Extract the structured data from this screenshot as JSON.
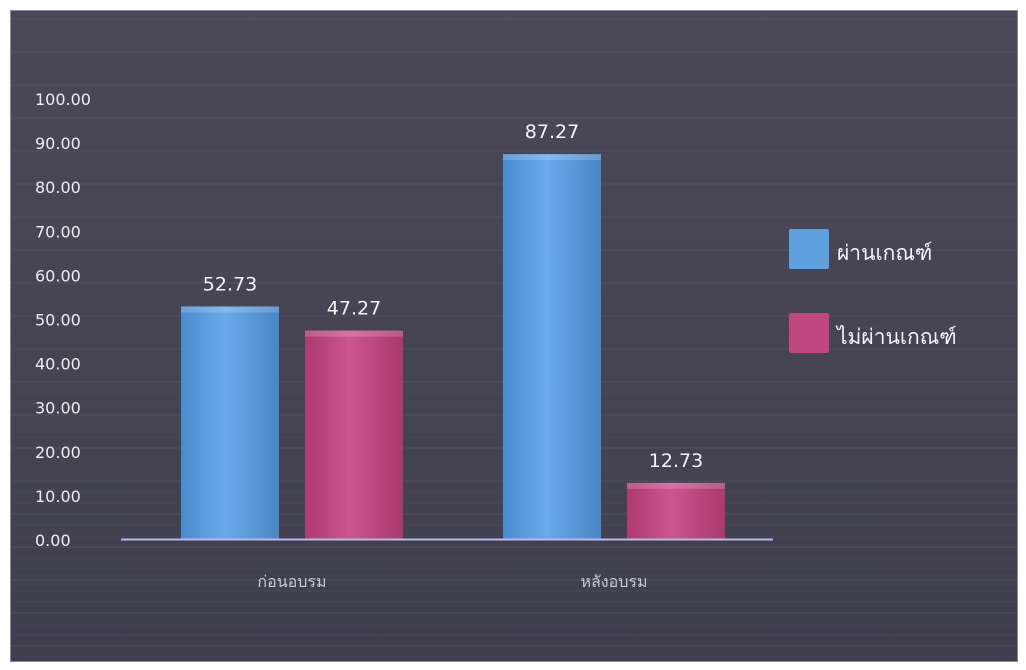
{
  "chart_data": {
    "type": "bar",
    "categories": [
      "ก่อนอบรม",
      "หลังอบรม"
    ],
    "series": [
      {
        "name": "ผ่านเกณฑ์",
        "values": [
          52.73,
          87.27
        ],
        "color": "#5fa0df",
        "labels": [
          "52.73",
          "87.27"
        ]
      },
      {
        "name": "ไม่ผ่านเกณฑ์",
        "values": [
          47.27,
          12.73
        ],
        "color": "#c0477f",
        "labels": [
          "47.27",
          "12.73"
        ]
      }
    ],
    "y_ticks": [
      "0.00",
      "10.00",
      "20.00",
      "30.00",
      "40.00",
      "50.00",
      "60.00",
      "70.00",
      "80.00",
      "90.00",
      "100.00"
    ],
    "ylim": [
      0,
      100
    ],
    "title": "",
    "xlabel": "",
    "ylabel": "",
    "grid": false,
    "legend_position": "right"
  }
}
